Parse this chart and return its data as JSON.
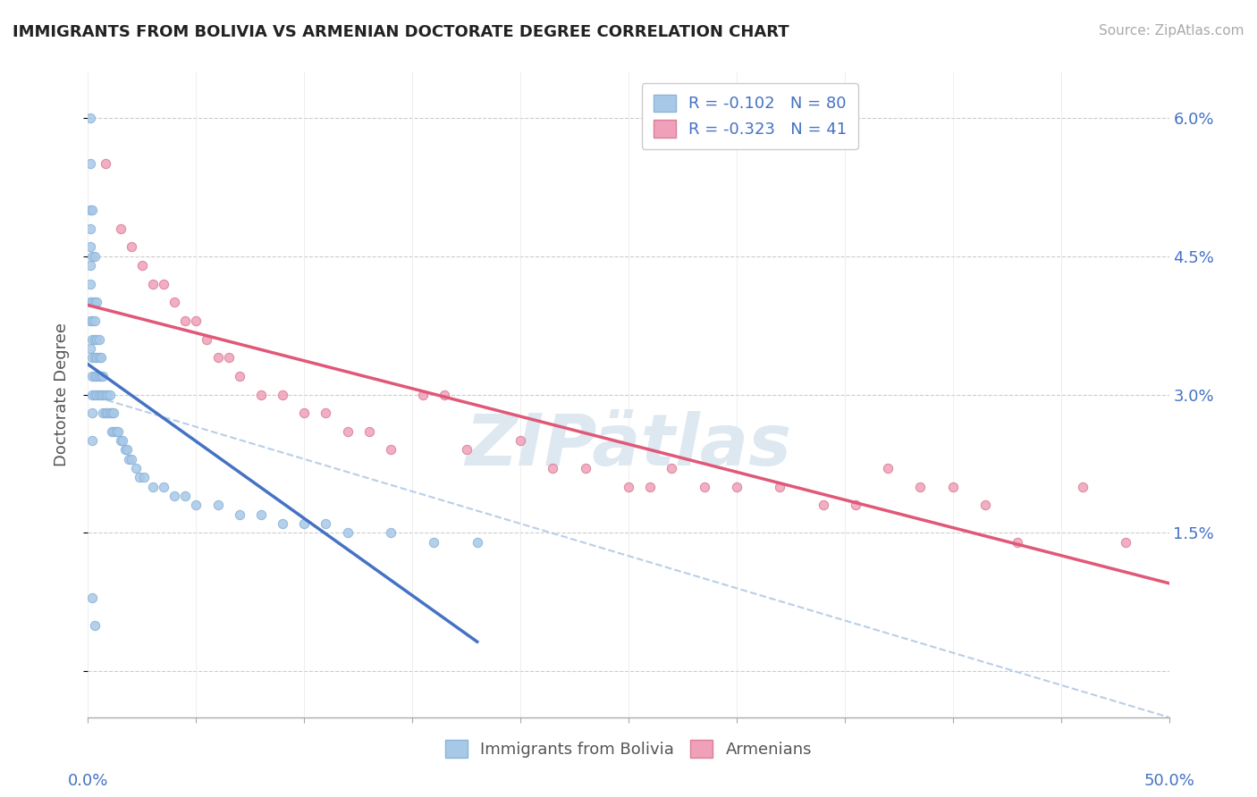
{
  "title": "IMMIGRANTS FROM BOLIVIA VS ARMENIAN DOCTORATE DEGREE CORRELATION CHART",
  "source": "Source: ZipAtlas.com",
  "ylabel": "Doctorate Degree",
  "bolivia_color": "#a8c8e8",
  "armenia_color": "#f0a0b8",
  "bolivia_line_color": "#4472c4",
  "armenia_line_color": "#e05878",
  "dashed_line_color": "#b8cfe8",
  "watermark_color": "#dde8f0",
  "legend_r1": "R = -0.102   N = 80",
  "legend_r2": "R = -0.323   N = 41",
  "legend_bottom": [
    "Immigrants from Bolivia",
    "Armenians"
  ],
  "bolivia_x": [
    0.001,
    0.001,
    0.001,
    0.001,
    0.001,
    0.001,
    0.001,
    0.001,
    0.001,
    0.001,
    0.002,
    0.002,
    0.002,
    0.002,
    0.002,
    0.002,
    0.002,
    0.002,
    0.002,
    0.002,
    0.003,
    0.003,
    0.003,
    0.003,
    0.003,
    0.003,
    0.003,
    0.004,
    0.004,
    0.004,
    0.004,
    0.004,
    0.005,
    0.005,
    0.005,
    0.005,
    0.006,
    0.006,
    0.006,
    0.007,
    0.007,
    0.007,
    0.008,
    0.008,
    0.009,
    0.009,
    0.01,
    0.01,
    0.011,
    0.011,
    0.012,
    0.012,
    0.013,
    0.014,
    0.015,
    0.016,
    0.017,
    0.018,
    0.019,
    0.02,
    0.022,
    0.024,
    0.026,
    0.03,
    0.035,
    0.04,
    0.045,
    0.05,
    0.06,
    0.07,
    0.08,
    0.09,
    0.1,
    0.11,
    0.12,
    0.14,
    0.16,
    0.18,
    0.002,
    0.003
  ],
  "bolivia_y": [
    0.06,
    0.055,
    0.05,
    0.048,
    0.046,
    0.044,
    0.042,
    0.04,
    0.038,
    0.035,
    0.05,
    0.045,
    0.04,
    0.038,
    0.036,
    0.034,
    0.032,
    0.03,
    0.028,
    0.025,
    0.045,
    0.04,
    0.038,
    0.036,
    0.034,
    0.032,
    0.03,
    0.04,
    0.036,
    0.034,
    0.032,
    0.03,
    0.036,
    0.034,
    0.032,
    0.03,
    0.034,
    0.032,
    0.03,
    0.032,
    0.03,
    0.028,
    0.03,
    0.028,
    0.03,
    0.028,
    0.03,
    0.028,
    0.028,
    0.026,
    0.028,
    0.026,
    0.026,
    0.026,
    0.025,
    0.025,
    0.024,
    0.024,
    0.023,
    0.023,
    0.022,
    0.021,
    0.021,
    0.02,
    0.02,
    0.019,
    0.019,
    0.018,
    0.018,
    0.017,
    0.017,
    0.016,
    0.016,
    0.016,
    0.015,
    0.015,
    0.014,
    0.014,
    0.008,
    0.005
  ],
  "armenia_x": [
    0.008,
    0.015,
    0.02,
    0.025,
    0.03,
    0.035,
    0.04,
    0.045,
    0.05,
    0.055,
    0.06,
    0.065,
    0.07,
    0.08,
    0.09,
    0.1,
    0.11,
    0.12,
    0.13,
    0.14,
    0.155,
    0.165,
    0.175,
    0.2,
    0.215,
    0.23,
    0.25,
    0.26,
    0.27,
    0.285,
    0.3,
    0.32,
    0.34,
    0.355,
    0.37,
    0.385,
    0.4,
    0.415,
    0.43,
    0.46,
    0.48
  ],
  "armenia_y": [
    0.055,
    0.048,
    0.046,
    0.044,
    0.042,
    0.042,
    0.04,
    0.038,
    0.038,
    0.036,
    0.034,
    0.034,
    0.032,
    0.03,
    0.03,
    0.028,
    0.028,
    0.026,
    0.026,
    0.024,
    0.03,
    0.03,
    0.024,
    0.025,
    0.022,
    0.022,
    0.02,
    0.02,
    0.022,
    0.02,
    0.02,
    0.02,
    0.018,
    0.018,
    0.022,
    0.02,
    0.02,
    0.018,
    0.014,
    0.02,
    0.014
  ],
  "xmin": 0.0,
  "xmax": 0.5,
  "ymin": -0.005,
  "ymax": 0.065
}
